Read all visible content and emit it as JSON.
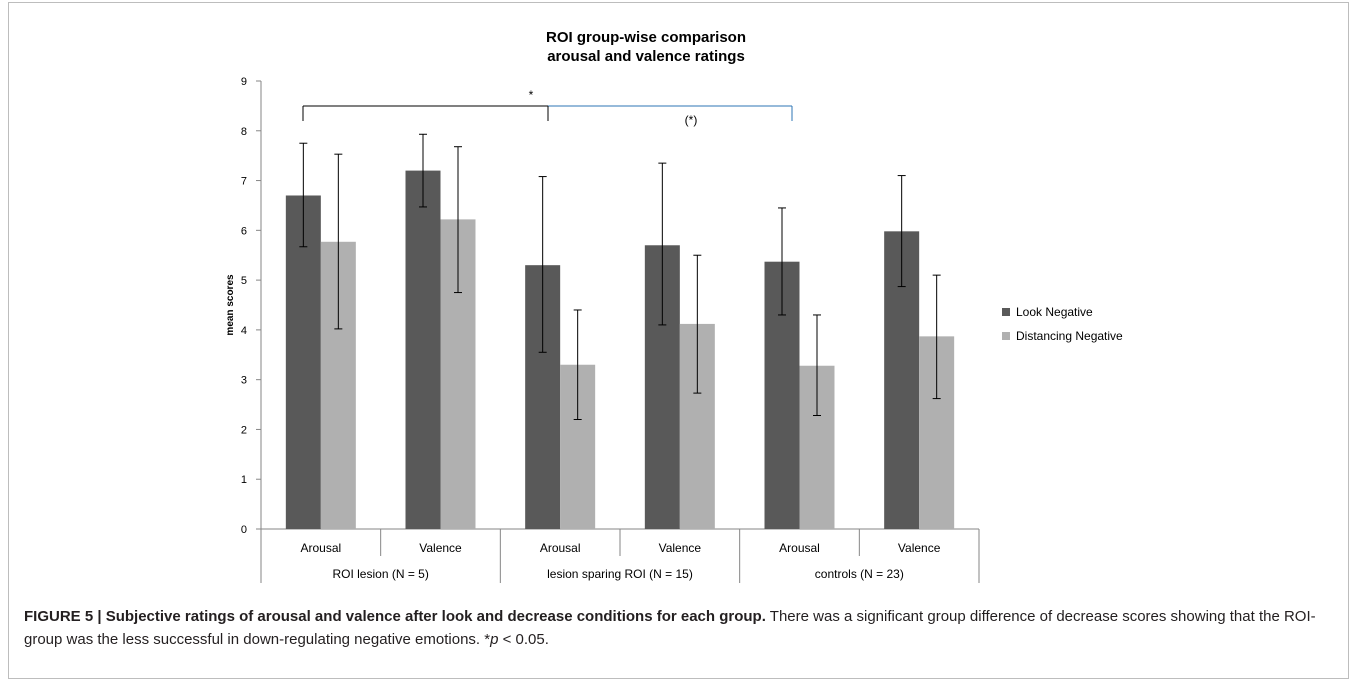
{
  "chart_data": {
    "type": "bar",
    "title_line1": "ROI group-wise comparison",
    "title_line2": "arousal and valence ratings",
    "ylabel": "mean scores",
    "ylim": [
      0,
      9
    ],
    "yticks": [
      "0",
      "1",
      "2",
      "3",
      "4",
      "5",
      "6",
      "7",
      "8",
      "9"
    ],
    "categories": [
      "Arousal",
      "Valence",
      "Arousal",
      "Valence",
      "Arousal",
      "Valence"
    ],
    "groups": [
      "ROI lesion (N = 5)",
      "lesion sparing ROI (N = 15)",
      "controls (N = 23)"
    ],
    "series": [
      {
        "name": "Look Negative",
        "color": "#595959",
        "values": [
          6.7,
          7.2,
          5.3,
          5.7,
          5.37,
          5.98
        ],
        "err_low": [
          5.67,
          6.47,
          3.55,
          4.1,
          4.3,
          4.87
        ],
        "err_high": [
          7.75,
          7.93,
          7.08,
          7.35,
          6.45,
          7.1
        ]
      },
      {
        "name": "Distancing Negative",
        "color": "#b0b0b0",
        "values": [
          5.77,
          6.22,
          3.3,
          4.12,
          3.28,
          3.87
        ],
        "err_low": [
          4.02,
          4.75,
          2.2,
          2.73,
          2.28,
          2.62
        ],
        "err_high": [
          7.53,
          7.68,
          4.4,
          5.5,
          4.3,
          5.1
        ]
      }
    ],
    "significance": [
      "*",
      "(*)"
    ],
    "grid": false,
    "legend_position": "right"
  },
  "caption": {
    "bold": "FIGURE 5 | Subjective ratings of arousal and valence after look and decrease conditions for each group.",
    "text": " There was a significant group difference of decrease scores showing that the ROI-group was the less successful in down-regulating negative emotions. *",
    "p_italic": "p",
    "tail": " < 0.05."
  }
}
